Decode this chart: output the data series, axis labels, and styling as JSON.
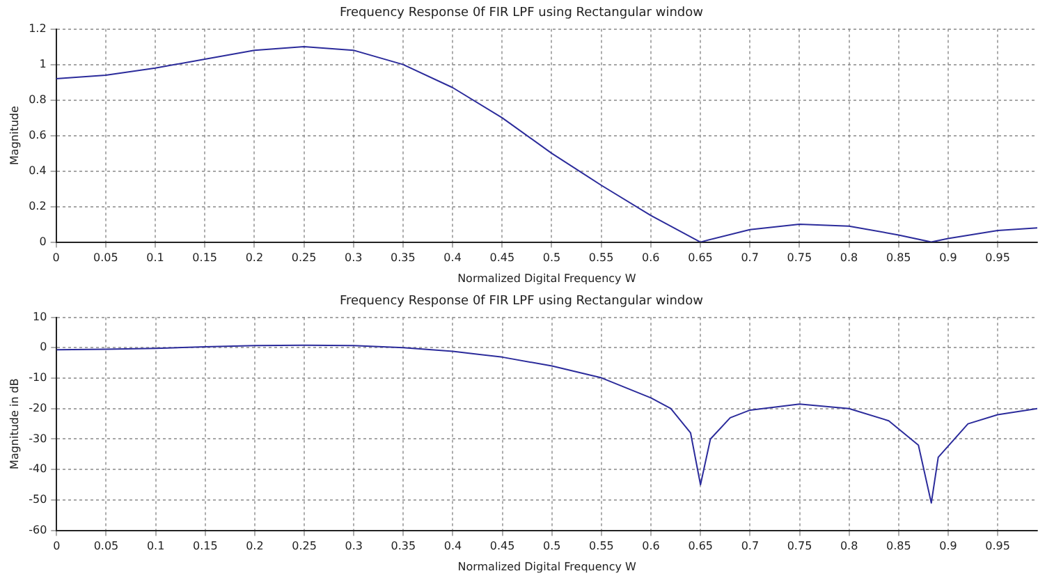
{
  "chart_data": [
    {
      "type": "line",
      "title": "Frequency Response 0f FIR LPF using Rectangular window",
      "xlabel": "Normalized Digital Frequency W",
      "ylabel": "Magnitude",
      "x": [
        0,
        0.05,
        0.1,
        0.15,
        0.2,
        0.25,
        0.3,
        0.35,
        0.4,
        0.45,
        0.5,
        0.55,
        0.6,
        0.65,
        0.7,
        0.75,
        0.8,
        0.85,
        0.883,
        0.9,
        0.95,
        0.99
      ],
      "series": [
        {
          "color": "#2b2b9b",
          "values": [
            0.92,
            0.94,
            0.98,
            1.03,
            1.08,
            1.1,
            1.08,
            1.0,
            0.87,
            0.7,
            0.5,
            0.32,
            0.15,
            0.0,
            0.07,
            0.1,
            0.09,
            0.04,
            0.0,
            0.02,
            0.065,
            0.08
          ]
        }
      ],
      "xlim": [
        0,
        0.99
      ],
      "xticks": [
        0,
        0.05,
        0.1,
        0.15,
        0.2,
        0.25,
        0.3,
        0.35,
        0.4,
        0.45,
        0.5,
        0.55,
        0.6,
        0.65,
        0.7,
        0.75,
        0.8,
        0.85,
        0.9,
        0.95
      ],
      "ylim": [
        0,
        1.2
      ],
      "yticks": [
        0,
        0.2,
        0.4,
        0.6,
        0.8,
        1,
        1.2
      ],
      "grid": true,
      "legend": false,
      "marker": "none",
      "line_style": "solid"
    },
    {
      "type": "line",
      "title": "Frequency Response 0f FIR LPF using Rectangular window",
      "xlabel": "Normalized Digital Frequency W",
      "ylabel": "Magnitude in dB",
      "x": [
        0,
        0.05,
        0.1,
        0.15,
        0.2,
        0.25,
        0.3,
        0.35,
        0.4,
        0.45,
        0.5,
        0.55,
        0.6,
        0.62,
        0.64,
        0.65,
        0.66,
        0.68,
        0.7,
        0.75,
        0.8,
        0.84,
        0.87,
        0.883,
        0.89,
        0.92,
        0.95,
        0.99
      ],
      "series": [
        {
          "color": "#2b2b9b",
          "values": [
            -0.7,
            -0.5,
            -0.2,
            0.3,
            0.7,
            0.8,
            0.7,
            0,
            -1.2,
            -3.1,
            -6,
            -9.9,
            -16.5,
            -20,
            -28,
            -45,
            -30,
            -23,
            -20.5,
            -18.5,
            -20,
            -24,
            -32,
            -51,
            -36,
            -25,
            -22,
            -20
          ]
        }
      ],
      "xlim": [
        0,
        0.99
      ],
      "xticks": [
        0,
        0.05,
        0.1,
        0.15,
        0.2,
        0.25,
        0.3,
        0.35,
        0.4,
        0.45,
        0.5,
        0.55,
        0.6,
        0.65,
        0.7,
        0.75,
        0.8,
        0.85,
        0.9,
        0.95
      ],
      "ylim": [
        -60,
        10
      ],
      "yticks": [
        -60,
        -50,
        -40,
        -30,
        -20,
        -10,
        0,
        10
      ],
      "grid": true,
      "legend": false,
      "marker": "none",
      "line_style": "solid"
    }
  ]
}
